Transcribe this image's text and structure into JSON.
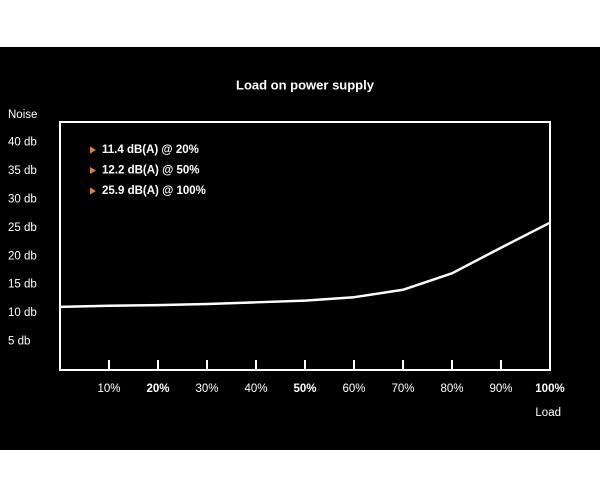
{
  "chart_data": {
    "type": "line",
    "title": "Load on power supply",
    "y_label": "Noise",
    "x_label": "Load",
    "annotations": [
      "11.4 dB(A) @ 20%",
      "12.2 dB(A) @ 50%",
      "25.9 dB(A) @ 100%"
    ],
    "annotation_marker_color": "#e8822a",
    "x": [
      0,
      10,
      20,
      30,
      40,
      50,
      60,
      70,
      80,
      90,
      100
    ],
    "series": [
      {
        "color": "#ffffff",
        "values": [
          11.1,
          11.3,
          11.4,
          11.6,
          11.9,
          12.2,
          12.8,
          14.1,
          17.0,
          21.5,
          25.9
        ]
      }
    ],
    "xlim": [
      0,
      100
    ],
    "ylim": [
      0,
      43.6
    ],
    "xticks": [
      {
        "value": 10,
        "label": "10%"
      },
      {
        "value": 20,
        "label": "20%"
      },
      {
        "value": 30,
        "label": "30%"
      },
      {
        "value": 40,
        "label": "40%"
      },
      {
        "value": 50,
        "label": "50%"
      },
      {
        "value": 60,
        "label": "60%"
      },
      {
        "value": 70,
        "label": "70%"
      },
      {
        "value": 80,
        "label": "80%"
      },
      {
        "value": 90,
        "label": "90%"
      },
      {
        "value": 100,
        "label": "100%"
      }
    ],
    "xtick_bold": [
      false,
      true,
      false,
      false,
      true,
      false,
      false,
      false,
      false,
      true
    ],
    "yticks": [
      {
        "value": 5,
        "label": "5 db"
      },
      {
        "value": 10,
        "label": "10 db"
      },
      {
        "value": 15,
        "label": "15 db"
      },
      {
        "value": 20,
        "label": "20 db"
      },
      {
        "value": 25,
        "label": "25 db"
      },
      {
        "value": 30,
        "label": "30 db"
      },
      {
        "value": 35,
        "label": "35 db"
      },
      {
        "value": 40,
        "label": "40 db"
      }
    ]
  }
}
